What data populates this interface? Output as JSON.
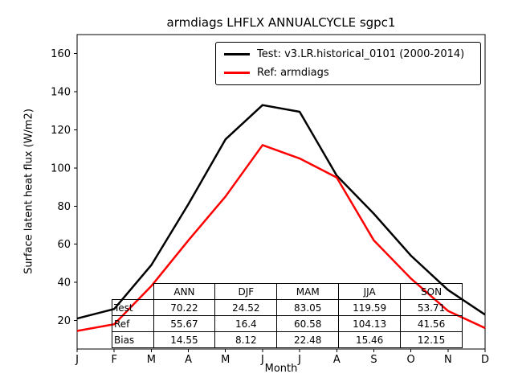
{
  "chart_data": {
    "type": "line",
    "title": "armdiags LHFLX ANNUALCYCLE sgpc1",
    "xlabel": "Month",
    "ylabel": "Surface latent heat flux (W/m2)",
    "x_tick_labels": [
      "J",
      "F",
      "M",
      "A",
      "M",
      "J",
      "J",
      "A",
      "S",
      "O",
      "N",
      "D"
    ],
    "yticks": [
      20,
      40,
      60,
      80,
      100,
      120,
      140,
      160
    ],
    "ylim": [
      5,
      170
    ],
    "grid": false,
    "legend_position": "upper right",
    "series": [
      {
        "name": "Test: v3.LR.historical_0101 (2000-2014)",
        "color": "#000000",
        "values": [
          21,
          26,
          49,
          81,
          115,
          133,
          129.5,
          96,
          76,
          54,
          36,
          23
        ]
      },
      {
        "name": "Ref: armdiags",
        "color": "#ff0000",
        "values": [
          14.5,
          18,
          38,
          62,
          85,
          112,
          105,
          95,
          62,
          42,
          25,
          16
        ]
      }
    ],
    "table": {
      "columns": [
        "ANN",
        "DJF",
        "MAM",
        "JJA",
        "SON"
      ],
      "rows": [
        {
          "label": "Test",
          "values": [
            70.22,
            24.52,
            83.05,
            119.59,
            53.71
          ]
        },
        {
          "label": "Ref",
          "values": [
            55.67,
            16.4,
            60.58,
            104.13,
            41.56
          ]
        },
        {
          "label": "Bias",
          "values": [
            14.55,
            8.12,
            22.48,
            15.46,
            12.15
          ]
        }
      ]
    }
  }
}
